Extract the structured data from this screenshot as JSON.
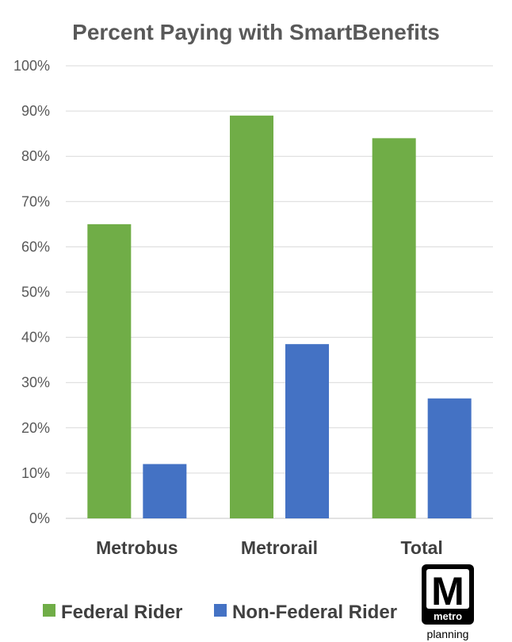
{
  "chart_data": {
    "type": "bar",
    "title": "Percent Paying with SmartBenefits",
    "categories": [
      "Metrobus",
      "Metrorail",
      "Total"
    ],
    "series": [
      {
        "name": "Federal Rider",
        "values": [
          65,
          89,
          84
        ],
        "color": "#70ad47"
      },
      {
        "name": "Non-Federal Rider",
        "values": [
          12,
          38.5,
          26.5
        ],
        "color": "#4472c4"
      }
    ],
    "y_ticks": [
      "0%",
      "10%",
      "20%",
      "30%",
      "40%",
      "50%",
      "60%",
      "70%",
      "80%",
      "90%",
      "100%"
    ],
    "ylim": [
      0,
      100
    ],
    "xlabel": "",
    "ylabel": "",
    "grid": true,
    "legend_position": "bottom"
  },
  "logo": {
    "letter": "M",
    "word": "metro",
    "subtitle": "planning"
  },
  "colors": {
    "grid": "#d9d9d9",
    "axis": "#d9d9d9"
  }
}
